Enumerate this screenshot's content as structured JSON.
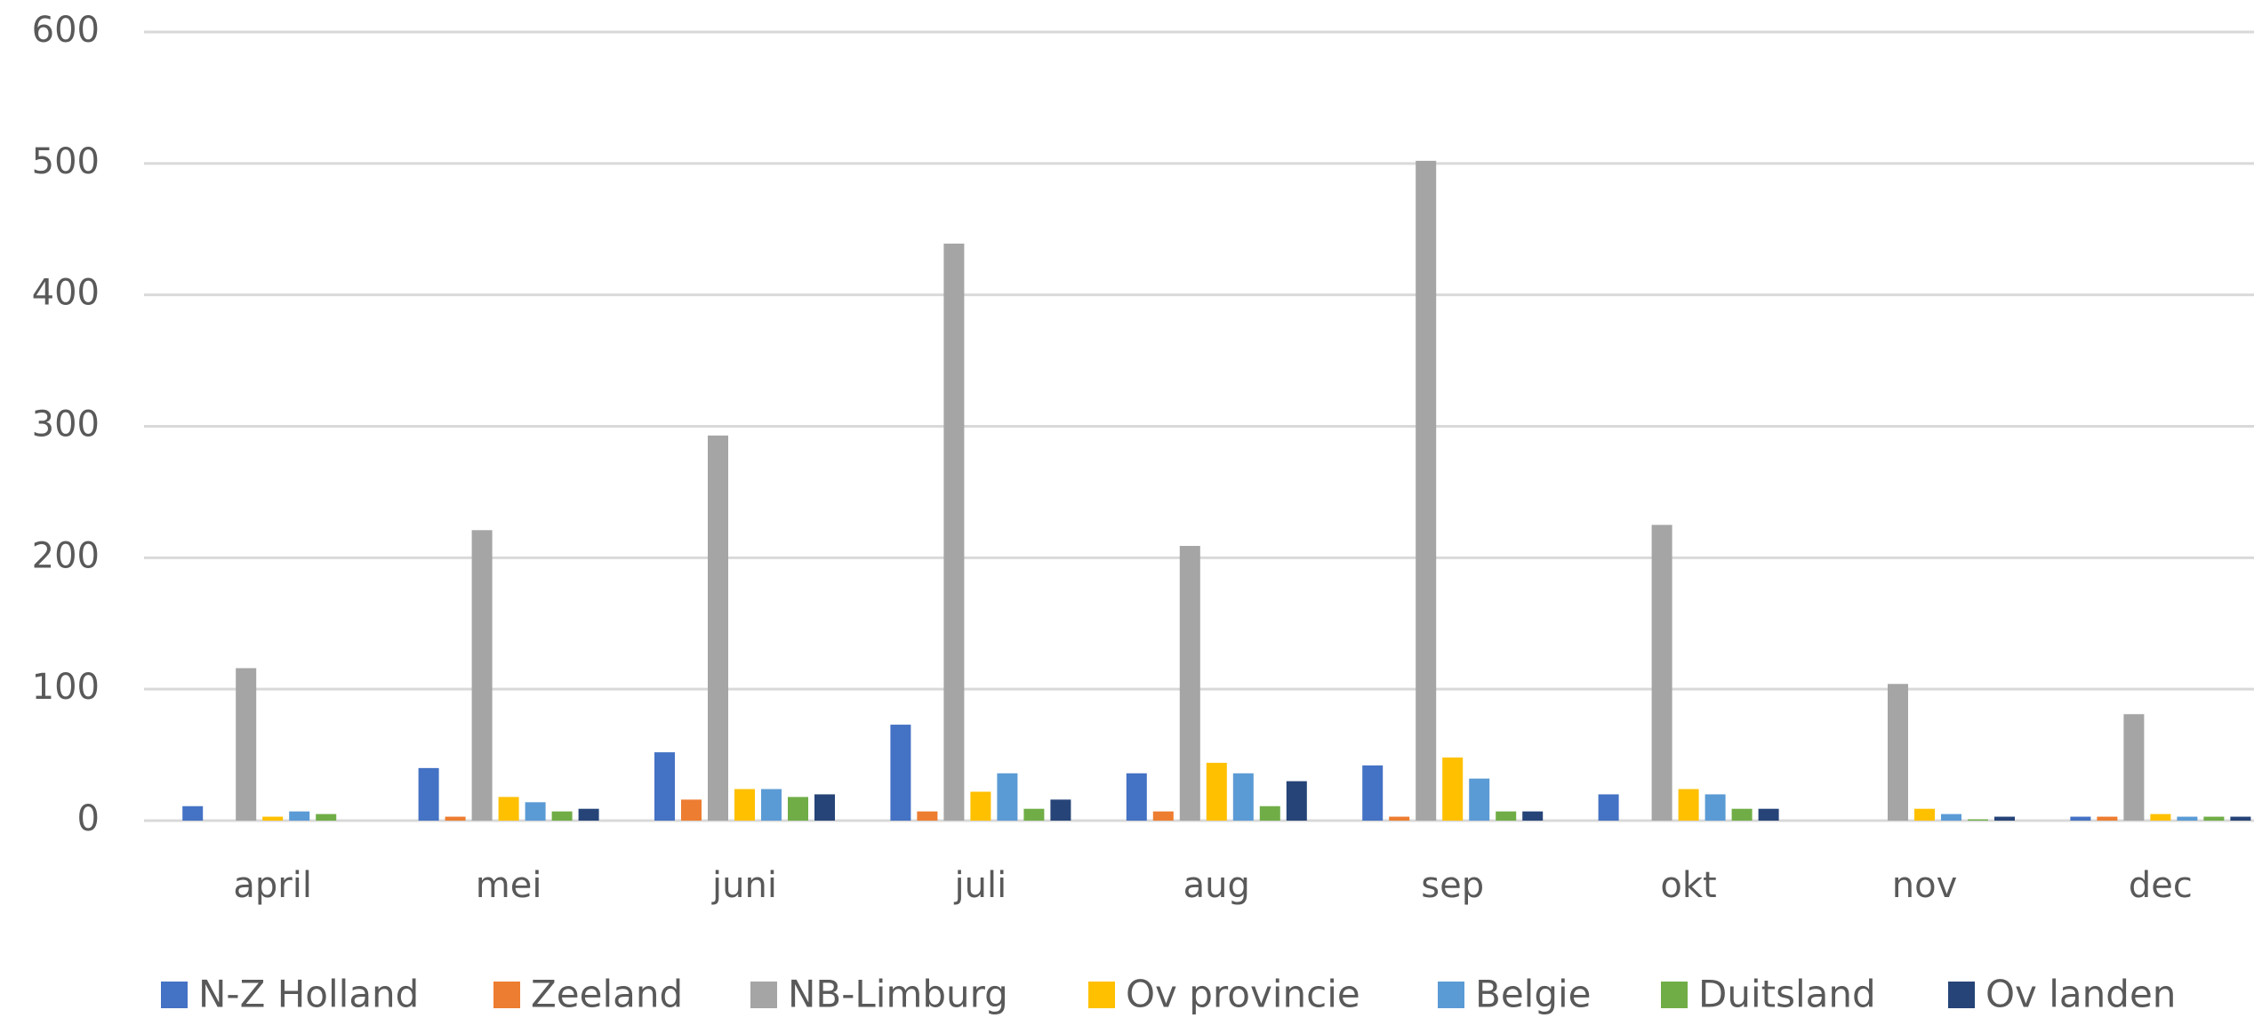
{
  "chart_data": {
    "type": "bar",
    "categories": [
      "april",
      "mei",
      "juni",
      "juli",
      "aug",
      "sep",
      "okt",
      "nov",
      "dec"
    ],
    "series": [
      {
        "name": "N-Z Holland",
        "color": "#4472c4",
        "values": [
          11,
          40,
          52,
          73,
          36,
          42,
          20,
          0,
          3
        ]
      },
      {
        "name": "Zeeland",
        "color": "#ed7d31",
        "values": [
          0,
          3,
          16,
          7,
          7,
          3,
          0,
          0,
          3
        ]
      },
      {
        "name": "NB-Limburg",
        "color": "#a5a5a5",
        "values": [
          116,
          221,
          293,
          439,
          209,
          502,
          225,
          104,
          81
        ]
      },
      {
        "name": "Ov provincie",
        "color": "#ffc000",
        "values": [
          3,
          18,
          24,
          22,
          44,
          48,
          24,
          9,
          5
        ]
      },
      {
        "name": "Belgie",
        "color": "#5b9bd5",
        "values": [
          7,
          14,
          24,
          36,
          36,
          32,
          20,
          5,
          3
        ]
      },
      {
        "name": "Duitsland",
        "color": "#70ad47",
        "values": [
          5,
          7,
          18,
          9,
          11,
          7,
          9,
          1,
          3
        ]
      },
      {
        "name": "Ov landen",
        "color": "#264478",
        "values": [
          0,
          9,
          20,
          16,
          30,
          7,
          9,
          3,
          3
        ]
      }
    ],
    "ylim": [
      0,
      600
    ],
    "yticks": [
      0,
      100,
      200,
      300,
      400,
      500,
      600
    ],
    "grid": true,
    "legend": "bottom"
  }
}
